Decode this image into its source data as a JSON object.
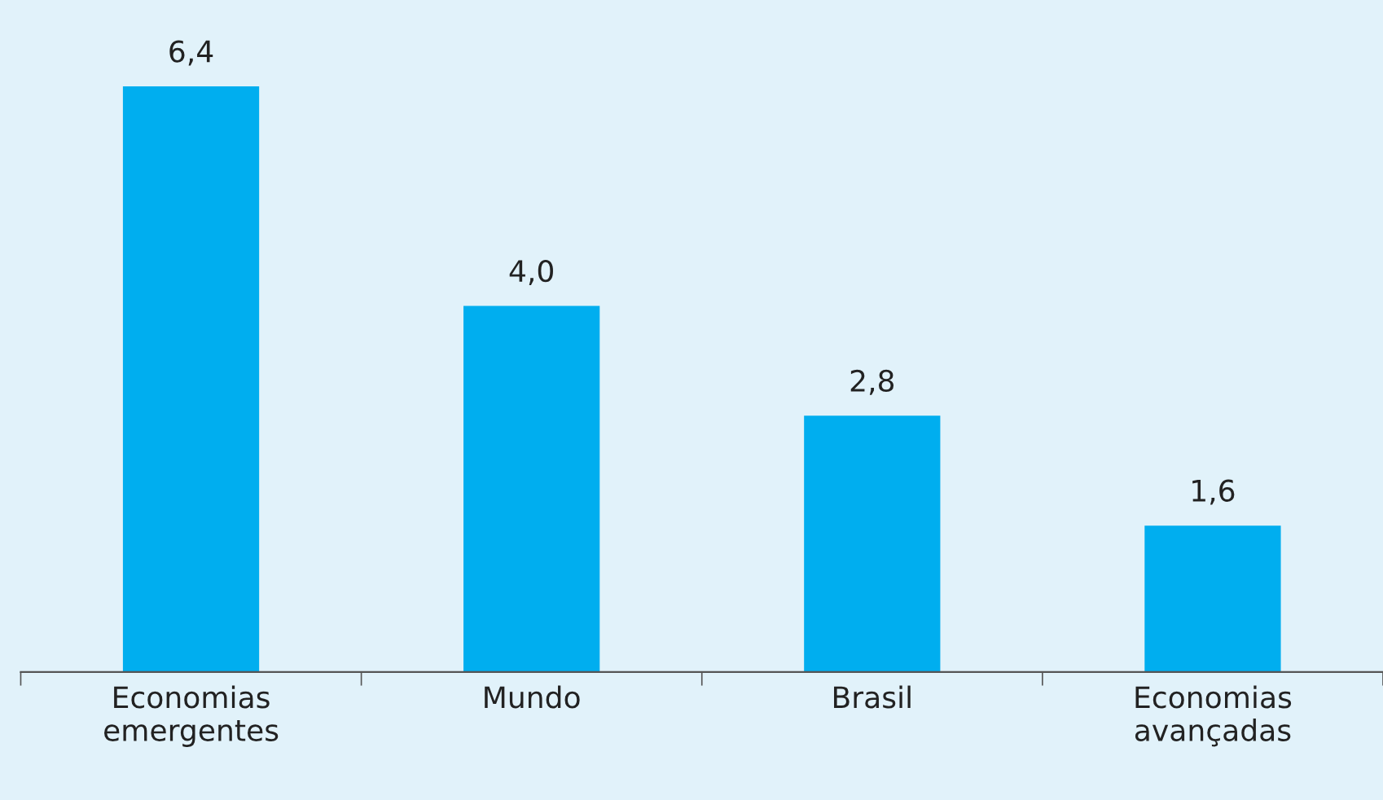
{
  "chart_data": {
    "type": "bar",
    "categories": [
      "Economias\nemergentes",
      "Mundo",
      "Brasil",
      "Economias\navançadas"
    ],
    "values": [
      6.4,
      4.0,
      2.8,
      1.6
    ],
    "value_labels": [
      "6,4",
      "4,0",
      "2,8",
      "1,6"
    ],
    "color": "#00aeef",
    "grid": false,
    "legend": false,
    "tick_labels": "x"
  }
}
